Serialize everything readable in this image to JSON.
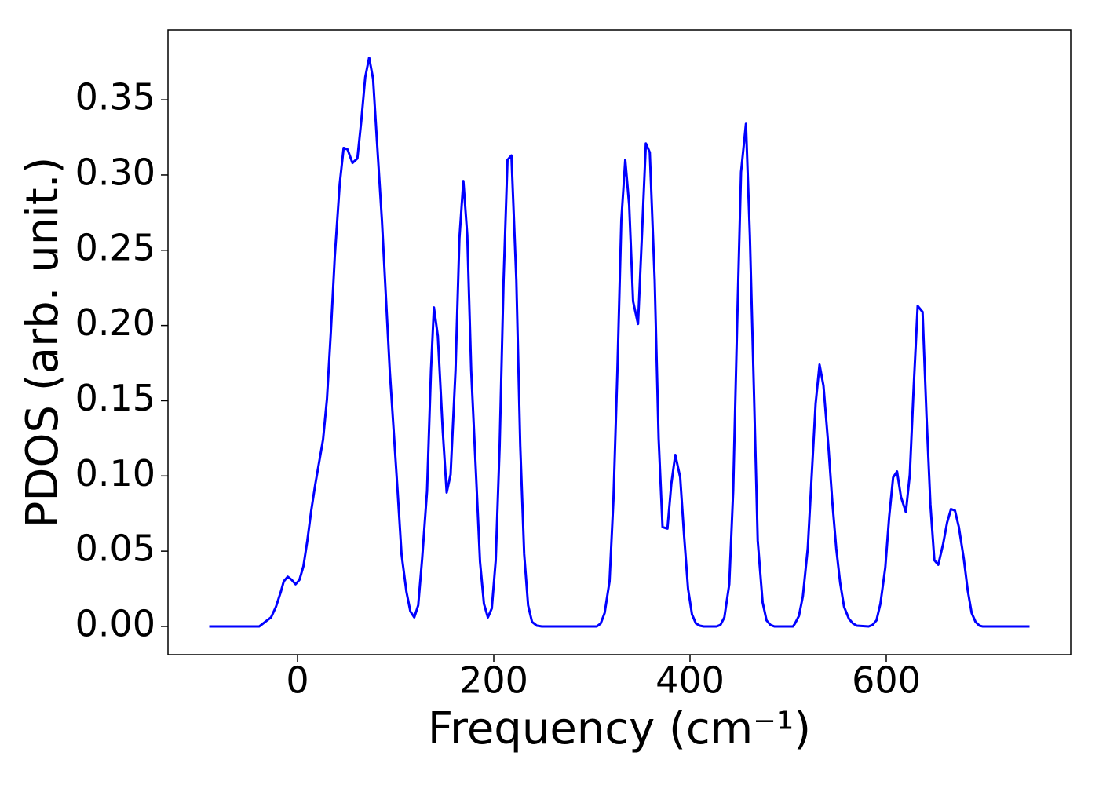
{
  "chart_data": {
    "type": "line",
    "x_label": "Frequency (cm⁻¹)",
    "y_label": "PDOS (arb. unit.)",
    "xlim": [
      -132,
      788
    ],
    "ylim": [
      -0.0188,
      0.3965
    ],
    "xticks": [
      0,
      200,
      400,
      600
    ],
    "yticks": [
      {
        "value": 0,
        "label": "0.00"
      },
      {
        "value": 0.05,
        "label": "0.05"
      },
      {
        "value": 0.1,
        "label": "0.10"
      },
      {
        "value": 0.15,
        "label": "0.15"
      },
      {
        "value": 0.2,
        "label": "0.20"
      },
      {
        "value": 0.25,
        "label": "0.25"
      },
      {
        "value": 0.3,
        "label": "0.30"
      },
      {
        "value": 0.35,
        "label": "0.35"
      }
    ],
    "x": [
      -90,
      -39,
      -27,
      -22,
      -17,
      -14,
      -10,
      -6,
      -2,
      2,
      6,
      10,
      14,
      18,
      22,
      26,
      30,
      34,
      38,
      43,
      47,
      51,
      56,
      61,
      65,
      69,
      73,
      77,
      81,
      86,
      90,
      94,
      98,
      102,
      106,
      111,
      115,
      119,
      123,
      127,
      132,
      136,
      139,
      143,
      148,
      152,
      156,
      161,
      165,
      169,
      173,
      177,
      182,
      186,
      190,
      194,
      198,
      202,
      206,
      210,
      214,
      218,
      223,
      227,
      231,
      235,
      239,
      244,
      249,
      305,
      309,
      313,
      318,
      322,
      326,
      330,
      334,
      338,
      342,
      347,
      351,
      355,
      359,
      364,
      368,
      372,
      377,
      381,
      385,
      390,
      394,
      398,
      402,
      406,
      410,
      414,
      427,
      431,
      435,
      440,
      444,
      448,
      452,
      457,
      461,
      465,
      469,
      474,
      478,
      482,
      486,
      505,
      507,
      511,
      515,
      520,
      524,
      528,
      532,
      536,
      541,
      545,
      549,
      553,
      557,
      562,
      566,
      570,
      582,
      586,
      590,
      594,
      599,
      603,
      607,
      611,
      615,
      620,
      624,
      628,
      632,
      637,
      641,
      645,
      649,
      653,
      658,
      662,
      666,
      670,
      674,
      679,
      683,
      687,
      691,
      695,
      698,
      746
    ],
    "series": [
      {
        "color": "#0000ff",
        "values": [
          0,
          0,
          0.006,
          0.013,
          0.023,
          0.03,
          0.033,
          0.031,
          0.028,
          0.031,
          0.04,
          0.057,
          0.077,
          0.094,
          0.109,
          0.124,
          0.151,
          0.196,
          0.246,
          0.294,
          0.318,
          0.317,
          0.308,
          0.311,
          0.336,
          0.365,
          0.378,
          0.364,
          0.322,
          0.27,
          0.22,
          0.17,
          0.13,
          0.09,
          0.048,
          0.023,
          0.01,
          0.006,
          0.014,
          0.045,
          0.09,
          0.17,
          0.212,
          0.193,
          0.13,
          0.089,
          0.101,
          0.17,
          0.258,
          0.296,
          0.26,
          0.17,
          0.1,
          0.043,
          0.015,
          0.006,
          0.012,
          0.044,
          0.12,
          0.23,
          0.31,
          0.313,
          0.23,
          0.12,
          0.048,
          0.014,
          0.003,
          0.0005,
          0,
          0,
          0.002,
          0.009,
          0.03,
          0.085,
          0.17,
          0.27,
          0.31,
          0.28,
          0.216,
          0.201,
          0.26,
          0.321,
          0.315,
          0.23,
          0.125,
          0.066,
          0.065,
          0.095,
          0.114,
          0.099,
          0.06,
          0.025,
          0.008,
          0.002,
          0.0005,
          0,
          0,
          0.001,
          0.006,
          0.028,
          0.09,
          0.2,
          0.302,
          0.334,
          0.26,
          0.16,
          0.057,
          0.016,
          0.004,
          0.001,
          0,
          0,
          0.002,
          0.007,
          0.02,
          0.052,
          0.1,
          0.148,
          0.174,
          0.16,
          0.12,
          0.083,
          0.052,
          0.029,
          0.013,
          0.005,
          0.002,
          0.0005,
          0,
          0.001,
          0.004,
          0.015,
          0.039,
          0.073,
          0.099,
          0.103,
          0.086,
          0.076,
          0.101,
          0.16,
          0.213,
          0.209,
          0.14,
          0.081,
          0.044,
          0.041,
          0.055,
          0.069,
          0.078,
          0.077,
          0.066,
          0.045,
          0.024,
          0.009,
          0.003,
          0.0005,
          0,
          0
        ]
      }
    ]
  }
}
